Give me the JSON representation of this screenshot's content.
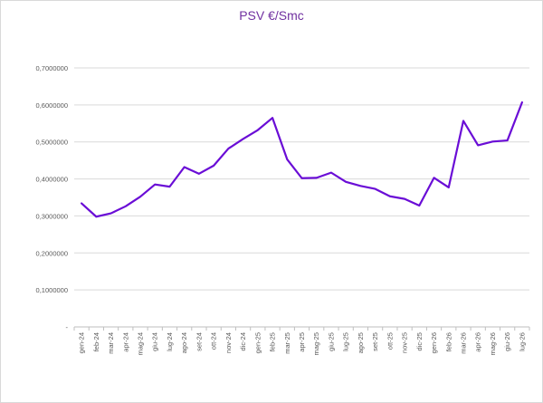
{
  "chart_data": {
    "type": "line",
    "title": "PSV €/Smc",
    "xlabel": "",
    "ylabel": "",
    "ylim": [
      0,
      0.7
    ],
    "grid": true,
    "legend": "none",
    "line_color": "#6a0dd6",
    "y_tick_values": [
      0,
      0.1,
      0.2,
      0.3,
      0.4,
      0.5,
      0.6,
      0.7
    ],
    "y_tick_labels": [
      "-",
      "0,1000000",
      "0,2000000",
      "0,3000000",
      "0,4000000",
      "0,5000000",
      "0,6000000",
      "0,7000000"
    ],
    "categories": [
      "gen-24",
      "feb-24",
      "mar-24",
      "apr-24",
      "mag-24",
      "giu-24",
      "lug-24",
      "ago-24",
      "set-24",
      "ott-24",
      "nov-24",
      "dic-24",
      "gen-25",
      "feb-25",
      "mar-25",
      "apr-25",
      "mag-25",
      "giu-25",
      "lug-25",
      "ago-25",
      "set-25",
      "ott-25",
      "nov-25",
      "dic-25",
      "gen-26",
      "feb-26",
      "mar-26",
      "apr-26",
      "mag-26",
      "giu-26",
      "lug-26"
    ],
    "values": [
      0.334,
      0.298,
      0.307,
      0.326,
      0.352,
      0.385,
      0.379,
      0.432,
      0.414,
      0.436,
      0.482,
      0.508,
      0.532,
      0.565,
      0.453,
      0.402,
      0.403,
      0.417,
      0.392,
      0.381,
      0.373,
      0.353,
      0.346,
      0.328,
      0.403,
      0.377,
      0.557,
      0.491,
      0.501,
      0.504,
      0.607
    ]
  }
}
